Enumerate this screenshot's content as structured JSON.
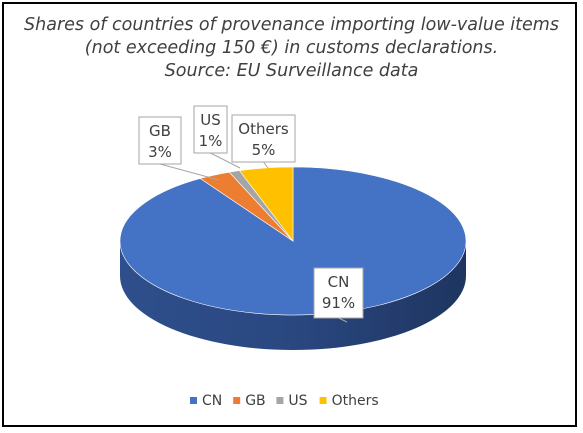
{
  "chart_data": {
    "type": "pie",
    "title_lines": [
      "Shares of countries of provenance importing low-value items",
      "(not exceeding 150 €) in customs declarations.",
      "Source: EU Surveillance data"
    ],
    "slices": [
      {
        "name": "CN",
        "value": 91,
        "label": "91%",
        "color": "#4472C4"
      },
      {
        "name": "GB",
        "value": 3,
        "label": "3%",
        "color": "#ED7D31"
      },
      {
        "name": "US",
        "value": 1,
        "label": "1%",
        "color": "#A5A5A5"
      },
      {
        "name": "Others",
        "value": 5,
        "label": "5%",
        "color": "#FFC000"
      }
    ],
    "legend": [
      "CN",
      "GB",
      "US",
      "Others"
    ],
    "legend_position": "bottom",
    "style": "3d-pie"
  }
}
